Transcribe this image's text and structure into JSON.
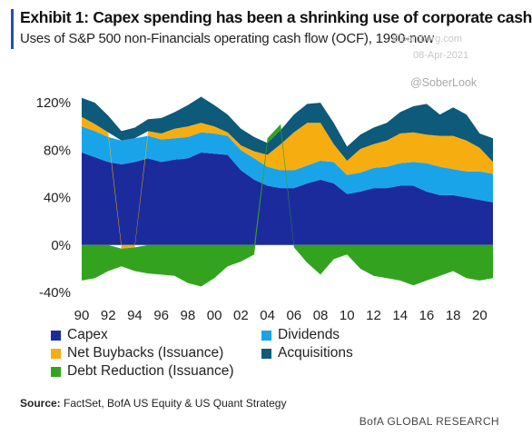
{
  "title": "Exhibit 1: Capex spending has been a shrinking use of corporate cash",
  "subtitle": "Uses of S&P 500 non-Financials operating cash flow (OCF), 1990-now",
  "watermark": {
    "url": "Bloomberg.com",
    "date": "08-Apr-2021",
    "handle": "@SoberLook"
  },
  "source": {
    "label": "Source:",
    "text": " FactSet, BofA US Equity & US Quant Strategy"
  },
  "brand": "BofA GLOBAL RESEARCH",
  "colors": {
    "Capex": "#1c2b9c",
    "Dividends": "#19a4ea",
    "Net Buybacks (Issuance)": "#f6ad0f",
    "Acquisitions": "#0d5a7a",
    "Debt Reduction (Issuance)": "#33a31f"
  },
  "chart_data": {
    "type": "area",
    "stacked": true,
    "ylim": [
      -40,
      130
    ],
    "y_ticks": [
      "120%",
      "80%",
      "40%",
      "0%",
      "-40%"
    ],
    "y_tick_values": [
      120,
      80,
      40,
      0,
      -40
    ],
    "x_ticks": [
      "90",
      "92",
      "94",
      "96",
      "98",
      "00",
      "02",
      "04",
      "06",
      "08",
      "10",
      "12",
      "14",
      "16",
      "18",
      "20"
    ],
    "x_tick_values": [
      1990,
      1992,
      1994,
      1996,
      1998,
      2000,
      2002,
      2004,
      2006,
      2008,
      2010,
      2012,
      2014,
      2016,
      2018,
      2020
    ],
    "x": [
      1990,
      1991,
      1992,
      1993,
      1994,
      1995,
      1996,
      1997,
      1998,
      1999,
      2000,
      2001,
      2002,
      2003,
      2004,
      2005,
      2006,
      2007,
      2008,
      2009,
      2010,
      2011,
      2012,
      2013,
      2014,
      2015,
      2016,
      2017,
      2018,
      2019,
      2020,
      2021
    ],
    "series": [
      {
        "name": "Capex",
        "values": [
          78,
          74,
          70,
          68,
          70,
          73,
          70,
          72,
          73,
          78,
          77,
          76,
          63,
          55,
          50,
          48,
          48,
          52,
          55,
          52,
          43,
          45,
          48,
          48,
          50,
          50,
          45,
          42,
          42,
          40,
          38,
          36
        ]
      },
      {
        "name": "Dividends",
        "values": [
          22,
          22,
          21,
          20,
          20,
          19,
          19,
          18,
          18,
          17,
          17,
          16,
          17,
          18,
          16,
          15,
          15,
          15,
          16,
          18,
          16,
          16,
          17,
          18,
          19,
          20,
          24,
          24,
          22,
          22,
          24,
          24
        ]
      },
      {
        "name": "Net Buybacks (Issuance)",
        "values": [
          8,
          6,
          4,
          -3,
          -2,
          4,
          5,
          8,
          9,
          8,
          6,
          3,
          4,
          6,
          10,
          22,
          32,
          36,
          32,
          15,
          12,
          20,
          20,
          22,
          25,
          25,
          24,
          26,
          28,
          26,
          20,
          10
        ]
      },
      {
        "name": "Acquisitions",
        "values": [
          16,
          18,
          14,
          8,
          9,
          10,
          13,
          14,
          18,
          22,
          18,
          15,
          14,
          12,
          10,
          12,
          15,
          16,
          17,
          18,
          12,
          12,
          14,
          15,
          18,
          22,
          26,
          18,
          24,
          22,
          12,
          20
        ]
      },
      {
        "name": "Debt Reduction (Issuance)",
        "values": [
          -30,
          -28,
          -22,
          -15,
          -20,
          -24,
          -25,
          -26,
          -32,
          -35,
          -28,
          -18,
          -14,
          -8,
          4,
          5,
          -2,
          -15,
          -25,
          -12,
          -8,
          -20,
          -26,
          -28,
          -30,
          -34,
          -30,
          -26,
          -22,
          -28,
          -30,
          -28
        ]
      }
    ],
    "legend": [
      "Capex",
      "Dividends",
      "Net Buybacks (Issuance)",
      "Acquisitions",
      "Debt Reduction (Issuance)"
    ],
    "legend_placement": "bottom",
    "grid": false
  }
}
